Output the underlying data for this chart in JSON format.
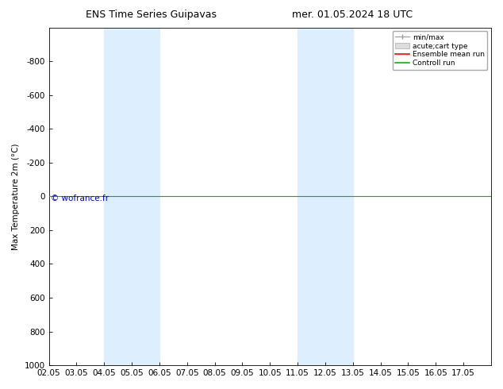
{
  "title_left": "ENS Time Series Guipavas",
  "title_right": "mer. 01.05.2024 18 UTC",
  "ylabel": "Max Temperature 2m (°C)",
  "xlabel": "",
  "xlim": [
    0,
    16
  ],
  "ylim": [
    -1000,
    1000
  ],
  "yticks": [
    -800,
    -600,
    -400,
    -200,
    0,
    200,
    400,
    600,
    800,
    1000
  ],
  "xtick_labels": [
    "02.05",
    "03.05",
    "04.05",
    "05.05",
    "06.05",
    "07.05",
    "08.05",
    "09.05",
    "10.05",
    "11.05",
    "12.05",
    "13.05",
    "14.05",
    "15.05",
    "16.05",
    "17.05"
  ],
  "shaded_bands": [
    [
      2,
      3
    ],
    [
      3,
      4
    ],
    [
      9,
      10
    ],
    [
      10,
      11
    ]
  ],
  "shade_color": "#ddeeff",
  "control_run_y": 0,
  "control_run_color": "#00bb00",
  "ensemble_mean_color": "#ff0000",
  "watermark": "© wofrance.fr",
  "watermark_color": "#0000cc",
  "background_color": "#ffffff",
  "title_fontsize": 9,
  "axis_fontsize": 7.5
}
